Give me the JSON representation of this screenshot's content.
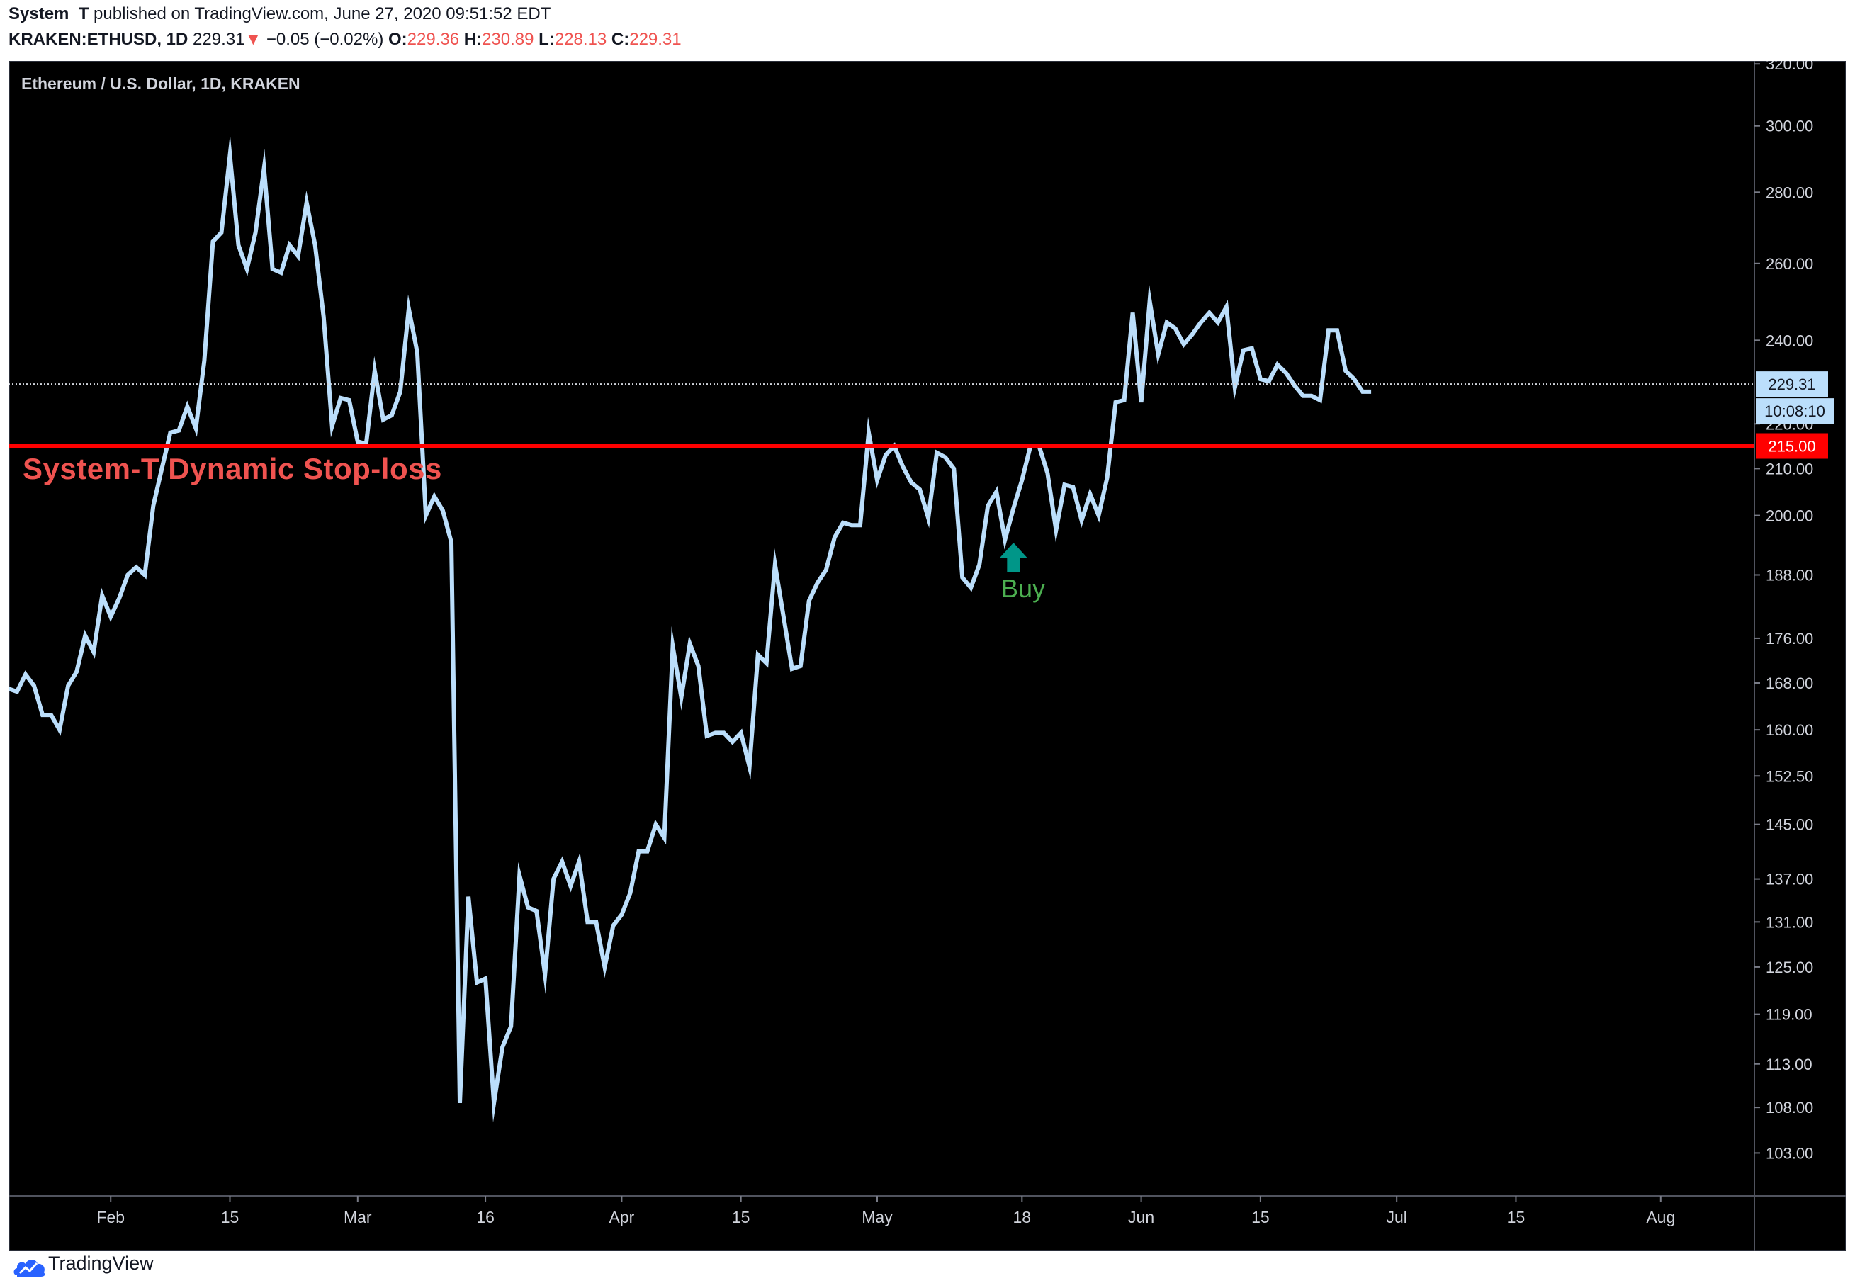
{
  "header": {
    "author": "System_T",
    "published": " published on TradingView.com, June 27, 2020 09:51:52 EDT",
    "symbol": "KRAKEN:ETHUSD, 1D",
    "last": "229.31",
    "change_arrow": "▼",
    "change": "−0.05 (−0.02%)",
    "o_label": "O:",
    "o_value": "229.36",
    "h_label": "H:",
    "h_value": "230.89",
    "l_label": "L:",
    "l_value": "228.13",
    "c_label": "C:",
    "c_value": "229.31"
  },
  "chart_title": "Ethereum / U.S. Dollar, 1D, KRAKEN",
  "footer": {
    "brand": "TradingView",
    "logo_icon": "tradingview-logo-icon"
  },
  "colors": {
    "background": "#000000",
    "line": "#bbdefb",
    "stop_line": "#ff0000",
    "stop_text": "#ef5350",
    "buy": "#4caf50",
    "buy_arrow": "#009688",
    "axis_text": "#d1d4dc"
  },
  "chart_data": {
    "type": "line",
    "title": "Ethereum / U.S. Dollar, 1D, KRAKEN",
    "y_scale": "log",
    "ylim": [
      98.5,
      321
    ],
    "xlim": [
      "2020-01-20",
      "2020-08-12"
    ],
    "y_ticks": [
      "320.00",
      "300.00",
      "280.00",
      "260.00",
      "240.00",
      "220.00",
      "210.00",
      "200.00",
      "188.00",
      "176.00",
      "168.00",
      "160.00",
      "152.50",
      "145.00",
      "137.00",
      "131.00",
      "125.00",
      "119.00",
      "113.00",
      "108.00",
      "103.00"
    ],
    "x_ticks": [
      {
        "label": "Feb",
        "date": "2020-02-01"
      },
      {
        "label": "15",
        "date": "2020-02-15"
      },
      {
        "label": "Mar",
        "date": "2020-03-01"
      },
      {
        "label": "16",
        "date": "2020-03-16"
      },
      {
        "label": "Apr",
        "date": "2020-04-01"
      },
      {
        "label": "15",
        "date": "2020-04-15"
      },
      {
        "label": "May",
        "date": "2020-05-01"
      },
      {
        "label": "18",
        "date": "2020-05-18"
      },
      {
        "label": "Jun",
        "date": "2020-06-01"
      },
      {
        "label": "15",
        "date": "2020-06-15"
      },
      {
        "label": "Jul",
        "date": "2020-07-01"
      },
      {
        "label": "15",
        "date": "2020-07-15"
      },
      {
        "label": "Aug",
        "date": "2020-08-01"
      }
    ],
    "series": [
      {
        "start_date": "2020-01-20",
        "values": [
          167,
          166.5,
          169.5,
          167.5,
          162.5,
          162.5,
          160,
          167.5,
          170,
          176.5,
          173.5,
          184,
          180,
          183.5,
          188,
          189.5,
          188,
          202,
          210,
          218,
          218.5,
          224,
          219,
          235,
          266,
          268.5,
          291,
          265,
          258.5,
          268.5,
          287,
          258.5,
          257.5,
          265,
          262,
          277,
          265,
          246,
          219.5,
          226,
          225.5,
          216,
          215.5,
          232.5,
          221,
          222,
          227.5,
          248,
          237,
          200,
          204,
          201,
          194.5,
          108.5,
          134.5,
          123,
          123.5,
          108.5,
          115,
          117.5,
          137.5,
          133,
          132.5,
          124,
          137,
          139.5,
          136,
          139.5,
          131,
          131,
          125,
          130.5,
          132,
          135,
          141,
          141,
          145,
          143,
          174.5,
          165.5,
          175,
          171,
          159,
          159.5,
          159.5,
          158,
          159.5,
          154,
          173,
          171.5,
          190,
          180,
          170.5,
          171,
          183,
          186.5,
          189,
          195.5,
          198.5,
          198,
          198,
          218,
          207.5,
          213,
          215,
          210.5,
          207,
          205.5,
          199.5,
          213.5,
          212.5,
          210,
          187.5,
          185.5,
          190,
          202,
          205,
          195,
          201.5,
          207.5,
          215,
          215,
          209,
          197,
          206.5,
          206,
          199,
          204.5,
          200,
          208,
          225,
          225.5,
          247,
          225,
          250,
          236.5,
          244.5,
          243,
          239,
          241.5,
          244.5,
          247,
          244.5,
          248.5,
          228.5,
          237.5,
          238,
          230.5,
          230,
          234,
          232,
          229,
          226.5,
          226.5,
          225.5,
          242.5,
          242.5,
          232.5,
          230.5,
          227.5,
          227.5
        ]
      }
    ],
    "last_price": "229.31",
    "countdown": "10:08:10",
    "stop_level": "215.00",
    "annotations": [
      {
        "type": "hline",
        "value": 215,
        "label": "System-T Dynamic Stop-loss"
      },
      {
        "type": "arrow_up",
        "date": "2020-05-18",
        "label": "Buy"
      }
    ]
  }
}
